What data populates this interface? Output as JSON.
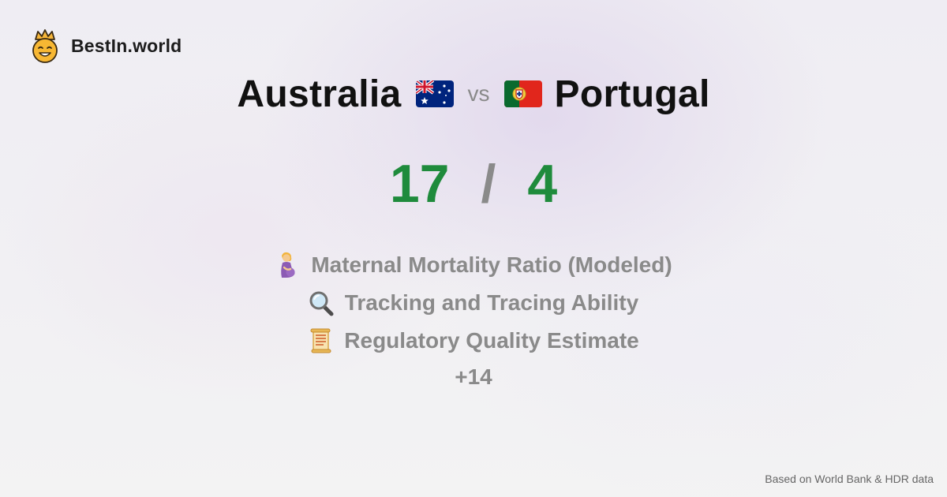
{
  "brand": {
    "name": "BestIn.world",
    "logo_icon": "crown-smiley-icon"
  },
  "comparison": {
    "country_a": {
      "name": "Australia",
      "flag_icon": "australia-flag-icon"
    },
    "vs_label": "vs",
    "country_b": {
      "name": "Portugal",
      "flag_icon": "portugal-flag-icon"
    }
  },
  "score": {
    "a": "17",
    "separator": "/",
    "b": "4",
    "color": "#1f8b3c"
  },
  "metrics": [
    {
      "icon": "pregnant-woman-icon",
      "label": "Maternal Mortality Ratio (Modeled)"
    },
    {
      "icon": "magnifying-glass-icon",
      "label": "Tracking and Tracing Ability"
    },
    {
      "icon": "scroll-icon",
      "label": "Regulatory Quality Estimate"
    }
  ],
  "more_label": "+14",
  "footer_note": "Based on World Bank & HDR data"
}
